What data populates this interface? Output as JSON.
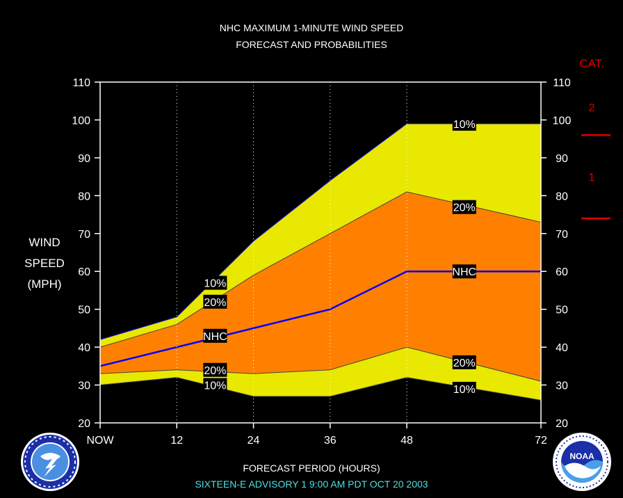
{
  "title_line1": "NHC MAXIMUM 1-MINUTE WIND SPEED",
  "title_line2": "FORECAST AND PROBABILITIES",
  "ylabel_lines": [
    "WIND",
    "SPEED",
    "(MPH)"
  ],
  "xlabel": "FORECAST PERIOD (HOURS)",
  "advisory": "SIXTEEN-E   ADVISORY  1  9:00 AM PDT  OCT 20  2003",
  "category": {
    "header": "CAT.",
    "labels": [
      "2",
      "1"
    ],
    "thresholds": [
      96,
      74
    ]
  },
  "colors": {
    "outer_band": "#e8e800",
    "inner_band": "#ff8000",
    "nhc_line": "#0000ff",
    "category": "#e00000",
    "advisory_text": "#4fe0e0"
  },
  "logos": {
    "left": "nws-logo",
    "right": "noaa-logo"
  },
  "chart_data": {
    "type": "area",
    "x": [
      0,
      12,
      24,
      36,
      48,
      72
    ],
    "xtick_labels": [
      "NOW",
      "12",
      "24",
      "36",
      "48",
      "72"
    ],
    "xlim": [
      0,
      69
    ],
    "ylim": [
      20,
      110
    ],
    "yticks": [
      20,
      30,
      40,
      50,
      60,
      70,
      80,
      90,
      100,
      110
    ],
    "grid": "vertical-dotted",
    "series": [
      {
        "name": "10%",
        "role": "upper",
        "values": [
          42,
          48,
          68,
          84,
          99,
          99
        ]
      },
      {
        "name": "20%",
        "role": "upper",
        "values": [
          40,
          46,
          59,
          70,
          81,
          73
        ]
      },
      {
        "name": "NHC",
        "role": "forecast",
        "values": [
          35,
          40,
          45,
          50,
          60,
          60
        ]
      },
      {
        "name": "20%",
        "role": "lower",
        "values": [
          33,
          34,
          33,
          34,
          40,
          31
        ]
      },
      {
        "name": "10%",
        "role": "lower",
        "values": [
          30,
          32,
          27,
          27,
          32,
          26
        ]
      }
    ],
    "annotations": [
      {
        "text": "10%",
        "x": 18,
        "y": 57
      },
      {
        "text": "20%",
        "x": 18,
        "y": 52
      },
      {
        "text": "NHC",
        "x": 18,
        "y": 43
      },
      {
        "text": "20%",
        "x": 18,
        "y": 34
      },
      {
        "text": "10%",
        "x": 18,
        "y": 30
      },
      {
        "text": "10%",
        "x": 57,
        "y": 99
      },
      {
        "text": "20%",
        "x": 57,
        "y": 77
      },
      {
        "text": "NHC",
        "x": 57,
        "y": 60
      },
      {
        "text": "20%",
        "x": 57,
        "y": 36
      },
      {
        "text": "10%",
        "x": 57,
        "y": 29
      }
    ]
  }
}
